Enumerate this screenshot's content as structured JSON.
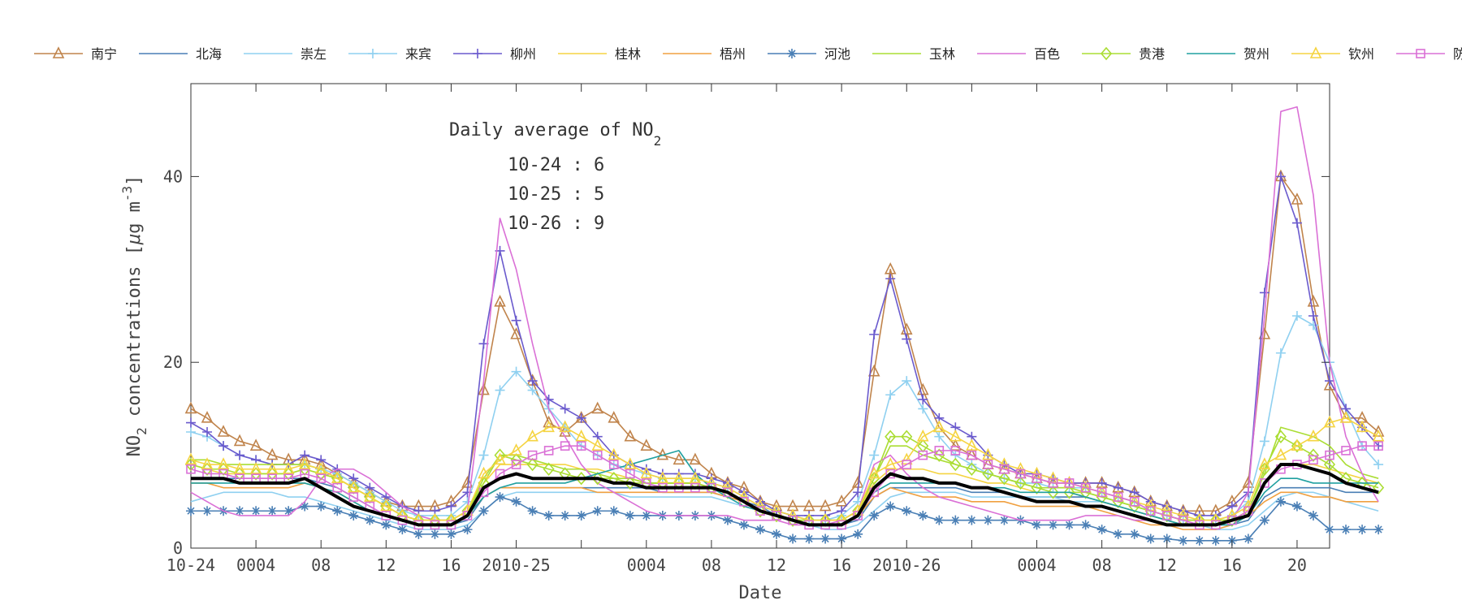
{
  "chart_data": {
    "type": "line",
    "title": "",
    "xlabel": "Date",
    "ylabel_main": "NO",
    "ylabel_sub": "2",
    "ylabel_rest": " concentrations [",
    "ylabel_mu": "μ",
    "ylabel_unit": "g m",
    "ylabel_exp": "-3",
    "ylabel_end": "]",
    "ylim": [
      0,
      50
    ],
    "yticks": [
      0,
      20,
      40
    ],
    "ytick_labels": [
      "0",
      "20",
      "40"
    ],
    "xlim": [
      0,
      70
    ],
    "xticks": [
      0,
      4,
      8,
      12,
      16,
      20,
      24,
      28,
      32,
      36,
      40,
      44,
      48,
      52,
      56,
      60,
      64,
      68
    ],
    "xtick_labels": [
      {
        "x": 0,
        "label": "10-24"
      },
      {
        "x": 4,
        "label": "0004"
      },
      {
        "x": 8,
        "label": "08"
      },
      {
        "x": 12,
        "label": "12"
      },
      {
        "x": 16,
        "label": "16"
      },
      {
        "x": 20,
        "label": "2010-25"
      },
      {
        "x": 28,
        "label": "0004"
      },
      {
        "x": 32,
        "label": "08"
      },
      {
        "x": 36,
        "label": "12"
      },
      {
        "x": 40,
        "label": "16"
      },
      {
        "x": 44,
        "label": "2010-26"
      },
      {
        "x": 52,
        "label": "0004"
      },
      {
        "x": 56,
        "label": "08"
      },
      {
        "x": 60,
        "label": "12"
      },
      {
        "x": 64,
        "label": "16"
      },
      {
        "x": 68,
        "label": "20"
      }
    ],
    "grid": false,
    "legend_position": "top",
    "annotation": {
      "heading_main": "Daily average of NO",
      "heading_sub": "2",
      "lines": [
        "10-24 : 6",
        "10-25 : 5",
        "10-26 : 9"
      ]
    },
    "series": [
      {
        "name": "南宁",
        "color": "#c0844c",
        "marker": "triangle",
        "values": [
          15,
          14,
          12.5,
          11.5,
          11,
          10,
          9.5,
          9.5,
          9,
          8,
          7,
          6,
          5,
          4.5,
          4.5,
          4.5,
          5,
          7,
          17,
          26.5,
          23,
          18,
          13.5,
          12.5,
          14,
          15,
          14,
          12,
          11,
          10,
          9.5,
          9.5,
          8,
          7,
          6.5,
          5,
          4.5,
          4.5,
          4.5,
          4.5,
          5,
          7,
          19,
          30,
          23.5,
          17,
          13,
          11,
          10,
          9,
          8.5,
          8,
          7.5,
          7,
          7,
          7,
          7,
          6.5,
          6,
          5,
          4.5,
          4,
          4,
          4,
          5,
          7,
          23,
          40,
          37.5,
          26.5,
          17.5,
          14,
          14,
          12.5
        ]
      },
      {
        "name": "北海",
        "color": "#4a7fb5",
        "marker": "none",
        "values": [
          7.5,
          7.5,
          7.5,
          7.5,
          7.5,
          7.5,
          7.5,
          7.5,
          7,
          6.5,
          5.5,
          4.5,
          3.5,
          3,
          2.5,
          2.5,
          2.5,
          3,
          5.5,
          6.5,
          6.5,
          6.5,
          6.5,
          6.5,
          6.5,
          6.5,
          6.5,
          6.5,
          6.5,
          6,
          6,
          6,
          6,
          5.5,
          5,
          4.5,
          3.5,
          3,
          2.5,
          2.5,
          2.5,
          3,
          5.5,
          6.5,
          6.5,
          6.5,
          6.5,
          6.5,
          6,
          6,
          6,
          5.5,
          5.5,
          5.5,
          5.5,
          5.5,
          5,
          4.5,
          4,
          3.5,
          3,
          2.5,
          2.5,
          2.5,
          2.5,
          3,
          5.5,
          6.5,
          6.5,
          6.5,
          6.5,
          6,
          6,
          6
        ]
      },
      {
        "name": "崇左",
        "color": "#8fd0f0",
        "marker": "none",
        "values": [
          5,
          5.5,
          6,
          6,
          6,
          6,
          5.5,
          5.5,
          5,
          4.5,
          4,
          3.5,
          3,
          2.5,
          2,
          2,
          2,
          2.5,
          4,
          5.5,
          6,
          6,
          6,
          6,
          6,
          6,
          6,
          5.5,
          5.5,
          5.5,
          5.5,
          5.5,
          5.5,
          5,
          4.5,
          4,
          3.5,
          3,
          2.5,
          2,
          2,
          2.5,
          4,
          5.5,
          6,
          6,
          6,
          6,
          5.5,
          5.5,
          5.5,
          5.5,
          5.5,
          5.5,
          5,
          5,
          5,
          4.5,
          4,
          3.5,
          3,
          2.5,
          2.5,
          2,
          2,
          2.5,
          4,
          5.5,
          6,
          6,
          5.5,
          5,
          4.5,
          4
        ]
      },
      {
        "name": "来宾",
        "color": "#8fd0f0",
        "marker": "plus",
        "values": [
          12.5,
          12,
          11,
          10,
          9.5,
          9,
          9,
          9,
          8.5,
          8,
          7,
          6,
          5,
          4,
          3.5,
          3.5,
          3.5,
          5,
          10,
          17,
          19,
          17,
          15,
          13,
          11,
          10,
          9,
          8.5,
          8,
          7.5,
          7.5,
          7.5,
          7,
          6.5,
          5.5,
          4.5,
          4,
          3.5,
          3,
          3,
          3.5,
          5,
          10,
          16.5,
          18,
          15,
          12,
          10,
          9,
          8,
          7.5,
          7,
          7,
          6.5,
          6.5,
          6.5,
          6,
          5.5,
          5,
          4,
          3.5,
          3,
          3,
          3,
          3.5,
          5,
          11.5,
          21,
          25,
          24,
          20,
          15,
          11,
          9
        ]
      },
      {
        "name": "柳州",
        "color": "#6a5acd",
        "marker": "plus",
        "values": [
          13.5,
          12.5,
          11,
          10,
          9.5,
          9,
          9,
          10,
          9.5,
          8.5,
          7.5,
          6.5,
          5.5,
          4.5,
          4,
          4,
          4.5,
          6,
          22,
          32,
          24.5,
          18,
          16,
          15,
          14,
          12,
          10,
          9,
          8.5,
          8,
          8,
          8,
          7.5,
          7,
          6,
          5,
          4,
          3.5,
          3.5,
          3.5,
          4,
          6,
          23,
          29,
          22.5,
          16,
          14,
          13,
          12,
          10,
          9,
          8,
          8,
          7.5,
          7,
          7,
          7,
          6.5,
          6,
          5,
          4.5,
          4,
          3.5,
          3.5,
          4.5,
          6,
          27.5,
          40,
          35,
          25,
          18,
          15,
          13,
          11
        ]
      },
      {
        "name": "桂林",
        "color": "#f5d442",
        "marker": "none",
        "values": [
          9,
          8.5,
          8,
          8,
          8,
          8,
          8,
          8.5,
          8,
          7.5,
          6.5,
          5.5,
          4.5,
          3.5,
          3,
          3,
          3,
          4,
          7,
          9,
          9,
          9,
          9,
          9,
          8.5,
          8.5,
          8,
          7.5,
          7,
          7,
          7,
          7,
          6.5,
          6,
          5,
          4,
          3.5,
          3,
          3,
          3,
          3,
          4,
          7,
          8.5,
          8.5,
          8.5,
          8,
          8,
          7.5,
          7,
          7,
          6.5,
          6,
          6,
          6,
          5.5,
          5,
          4.5,
          4,
          3.5,
          3,
          2.5,
          2.5,
          2.5,
          3,
          4,
          7,
          9,
          9,
          9,
          8.5,
          8,
          7.5,
          7
        ]
      },
      {
        "name": "梧州",
        "color": "#f0a040",
        "marker": "none",
        "values": [
          7,
          7,
          6.5,
          6.5,
          6.5,
          6.5,
          6.5,
          7,
          6.5,
          6,
          5,
          4,
          3.5,
          3,
          2.5,
          2.5,
          2.5,
          3.5,
          5.5,
          6.5,
          6.5,
          6.5,
          6.5,
          6.5,
          6.5,
          6,
          6,
          6,
          6,
          6,
          6,
          6,
          6,
          5.5,
          5,
          4,
          3.5,
          3,
          2.5,
          2.5,
          2.5,
          3.5,
          5.5,
          6.5,
          6,
          5.5,
          5.5,
          5.5,
          5,
          5,
          5,
          4.5,
          4.5,
          4.5,
          4.5,
          4.5,
          4,
          3.5,
          3,
          2.5,
          2.5,
          2,
          2,
          2,
          2.5,
          3.5,
          5,
          6,
          6,
          5.5,
          5.5,
          5,
          5,
          5
        ]
      },
      {
        "name": "河池",
        "color": "#4a7fb5",
        "marker": "star",
        "values": [
          4,
          4,
          4,
          4,
          4,
          4,
          4,
          4.5,
          4.5,
          4,
          3.5,
          3,
          2.5,
          2,
          1.5,
          1.5,
          1.5,
          2,
          4,
          5.5,
          5,
          4,
          3.5,
          3.5,
          3.5,
          4,
          4,
          3.5,
          3.5,
          3.5,
          3.5,
          3.5,
          3.5,
          3,
          2.5,
          2,
          1.5,
          1,
          1,
          1,
          1,
          1.5,
          3.5,
          4.5,
          4,
          3.5,
          3,
          3,
          3,
          3,
          3,
          3,
          2.5,
          2.5,
          2.5,
          2.5,
          2,
          1.5,
          1.5,
          1,
          1,
          0.8,
          0.8,
          0.8,
          0.8,
          1,
          3,
          5,
          4.5,
          3.5,
          2,
          2,
          2,
          2
        ]
      },
      {
        "name": "玉林",
        "color": "#aadd33",
        "marker": "none",
        "values": [
          9.5,
          9.5,
          9,
          9,
          9,
          9,
          9,
          9,
          8.5,
          7.5,
          6.5,
          5.5,
          4.5,
          3.5,
          3,
          3,
          3,
          4,
          7.5,
          10,
          10,
          9.5,
          9,
          8.5,
          8.5,
          8,
          7.5,
          7.5,
          7,
          7,
          7,
          7,
          6.5,
          6,
          5,
          4,
          3.5,
          3,
          3,
          3,
          3,
          4,
          7.5,
          11,
          11,
          10,
          9.5,
          9,
          8.5,
          8,
          7.5,
          7,
          6.5,
          6.5,
          6.5,
          6,
          5.5,
          5,
          4.5,
          4,
          3.5,
          3,
          3,
          3,
          3,
          4,
          8,
          13,
          12.5,
          12,
          11,
          9,
          8,
          7.5
        ]
      },
      {
        "name": "百色",
        "color": "#da70d6",
        "marker": "none",
        "values": [
          6,
          5,
          4,
          3.5,
          3.5,
          3.5,
          3.5,
          5,
          7.5,
          8.5,
          8.5,
          7.5,
          6,
          4.5,
          3.5,
          3,
          3,
          4,
          18,
          35.5,
          30,
          22,
          15,
          12,
          9,
          7,
          6,
          5,
          4,
          3.5,
          3.5,
          3.5,
          3.5,
          3.5,
          3,
          3,
          3,
          2.5,
          2.5,
          2.5,
          3,
          4,
          9,
          10,
          8,
          6.5,
          5.5,
          5,
          4.5,
          4,
          3.5,
          3,
          3,
          3,
          3,
          3.5,
          3.5,
          3.5,
          3,
          3,
          2.5,
          2.5,
          2.5,
          2.5,
          3,
          6,
          25,
          47,
          47.5,
          38,
          20,
          12,
          8,
          5
        ]
      },
      {
        "name": "贵港",
        "color": "#aadd33",
        "marker": "diamond",
        "values": [
          9,
          8.5,
          8.5,
          8,
          8,
          8,
          8,
          8.5,
          8,
          7.5,
          6.5,
          5.5,
          4.5,
          3.5,
          3,
          3,
          3,
          4,
          7,
          10,
          9.5,
          9,
          8.5,
          8,
          7.5,
          7.5,
          7.5,
          7,
          7,
          7,
          7,
          7,
          6.5,
          6,
          5,
          4,
          3.5,
          3,
          3,
          3,
          3,
          4,
          7.5,
          12,
          12,
          11,
          10,
          9,
          8.5,
          8,
          7.5,
          7,
          6.5,
          6,
          6,
          6,
          5.5,
          5,
          4.5,
          4,
          3.5,
          3,
          3,
          3,
          3,
          4,
          8.5,
          12,
          11,
          10,
          9,
          7.5,
          7,
          6.5
        ]
      },
      {
        "name": "贺州",
        "color": "#20a0a0",
        "marker": "none",
        "values": [
          7,
          7,
          7,
          7,
          7,
          7,
          7,
          7,
          6.5,
          6,
          5,
          4,
          3.5,
          3,
          2.5,
          2.5,
          2.5,
          3.5,
          5.5,
          6.5,
          7,
          7,
          7,
          7,
          7.5,
          8,
          8.5,
          9,
          9.5,
          10,
          10.5,
          8,
          6.5,
          5.5,
          4.5,
          4,
          3.5,
          3,
          2.5,
          2.5,
          2.5,
          3.5,
          6,
          7,
          7,
          7,
          7,
          7,
          6.5,
          6.5,
          6.5,
          6,
          6,
          6,
          6,
          5.5,
          5,
          4.5,
          4,
          3.5,
          3,
          2.5,
          2.5,
          2.5,
          2.5,
          3.5,
          6,
          7.5,
          7.5,
          7,
          7,
          7,
          7,
          7
        ]
      },
      {
        "name": "钦州",
        "color": "#f5d442",
        "marker": "triangle",
        "values": [
          9.5,
          9,
          9,
          8.5,
          8.5,
          8.5,
          8.5,
          9,
          8.5,
          7.5,
          6.5,
          5.5,
          4.5,
          3.5,
          3,
          3,
          3,
          4,
          8,
          9.5,
          10.5,
          12,
          13,
          13,
          12,
          11,
          10,
          9,
          8,
          7.5,
          7.5,
          7.5,
          7,
          6.5,
          5.5,
          4.5,
          4,
          3.5,
          3,
          3,
          3,
          4,
          8,
          9,
          9.5,
          12,
          13,
          12,
          11,
          10,
          9,
          8.5,
          8,
          7.5,
          7,
          6.5,
          6,
          5.5,
          5,
          4.5,
          4,
          3.5,
          3,
          3,
          3.5,
          4.5,
          9,
          10,
          11,
          12,
          13.5,
          14,
          13,
          12
        ]
      },
      {
        "name": "防城港",
        "color": "#da70d6",
        "marker": "square",
        "values": [
          8.5,
          8,
          8,
          7.5,
          7.5,
          7.5,
          7.5,
          8,
          7.5,
          6.5,
          5.5,
          4.5,
          3.5,
          3,
          2.5,
          2.5,
          2.5,
          3.5,
          6,
          8,
          9,
          10,
          10.5,
          11,
          11,
          10,
          9,
          8,
          7,
          6.5,
          6.5,
          6.5,
          6.5,
          6,
          5,
          4,
          3.5,
          3,
          2.5,
          2.5,
          2.5,
          3.5,
          6,
          8,
          9,
          10,
          10.5,
          10.5,
          10,
          9,
          8.5,
          8,
          7.5,
          7,
          7,
          6.5,
          6,
          5.5,
          5,
          4,
          3.5,
          3,
          2.5,
          2.5,
          3,
          4,
          7,
          8.5,
          9,
          9.5,
          10,
          10.5,
          11,
          11
        ]
      },
      {
        "name": "",
        "color": "#000000",
        "marker": "none",
        "bold": true,
        "values": [
          7.5,
          7.5,
          7.5,
          7,
          7,
          7,
          7,
          7.5,
          6.5,
          5.5,
          4.5,
          4,
          3.5,
          3,
          2.5,
          2.5,
          2.5,
          3.5,
          6.5,
          7.5,
          8,
          7.5,
          7.5,
          7.5,
          7.5,
          7.5,
          7,
          7,
          6.5,
          6.5,
          6.5,
          6.5,
          6.5,
          6,
          5,
          4,
          3.5,
          3,
          2.5,
          2.5,
          2.5,
          3.5,
          6.5,
          8,
          7.5,
          7.5,
          7,
          7,
          6.5,
          6.5,
          6,
          5.5,
          5,
          5,
          5,
          4.5,
          4.5,
          4,
          3.5,
          3,
          2.5,
          2.5,
          2.5,
          2.5,
          3,
          3.5,
          7,
          9,
          9,
          8.5,
          8,
          7,
          6.5,
          6
        ]
      }
    ]
  }
}
